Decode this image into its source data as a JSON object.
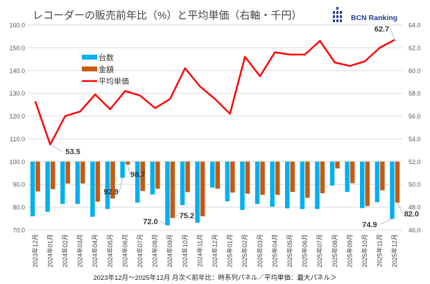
{
  "chart_data": {
    "type": "bar+line",
    "title": "レコーダーの販売前年比（%）と平均単価（右軸・千円）",
    "brand": "BCN Ranking",
    "footer": "2023年12月～2025年12月 月次＜前年比：時系列パネル／平均単価：最大パネル＞",
    "categories": [
      "2023年12月",
      "2024年01月",
      "2024年02月",
      "2024年03月",
      "2024年04月",
      "2024年05月",
      "2024年06月",
      "2024年07月",
      "2024年08月",
      "2024年09月",
      "2024年10月",
      "2024年11月",
      "2024年12月",
      "2025年01月",
      "2025年02月",
      "2025年03月",
      "2025年04月",
      "2025年05月",
      "2025年06月",
      "2025年07月",
      "2025年08月",
      "2025年09月",
      "2025年10月",
      "2025年11月",
      "2025年12月"
    ],
    "y_left": {
      "min": 70,
      "max": 160,
      "ticks": [
        "70.0",
        "80.0",
        "90.0",
        "100.0",
        "110.0",
        "120.0",
        "130.0",
        "140.0",
        "150.0",
        "160.0"
      ],
      "bar_baseline": 100
    },
    "y_right": {
      "min": 46,
      "max": 64,
      "ticks": [
        "46.0",
        "48.0",
        "50.0",
        "52.0",
        "54.0",
        "56.0",
        "58.0",
        "60.0",
        "62.0",
        "64.0"
      ]
    },
    "series": [
      {
        "name": "台数",
        "type": "bar",
        "axis": "left",
        "color": "#00b0f0",
        "values": [
          76.0,
          78.0,
          81.4,
          81.4,
          75.8,
          79.2,
          92.9,
          82.0,
          85.6,
          72.0,
          80.9,
          73.2,
          88.6,
          82.6,
          78.8,
          81.4,
          80.2,
          79.5,
          79.2,
          79.2,
          89.5,
          86.7,
          79.6,
          82.2,
          74.9
        ]
      },
      {
        "name": "金額",
        "type": "bar",
        "axis": "left",
        "color": "#c55a11",
        "values": [
          86.9,
          87.9,
          90.4,
          90.4,
          82.4,
          83.8,
          98.7,
          87.1,
          88.1,
          75.2,
          86.6,
          76.0,
          88.1,
          86.4,
          85.9,
          85.4,
          85.4,
          86.7,
          84.1,
          86.1,
          97.0,
          90.5,
          80.5,
          87.4,
          82.0
        ]
      },
      {
        "name": "平均単価",
        "type": "line",
        "axis": "right",
        "color": "#ff0000",
        "values": [
          57.3,
          53.5,
          56.0,
          56.4,
          57.9,
          56.6,
          58.2,
          57.8,
          56.7,
          57.5,
          60.2,
          58.6,
          57.5,
          56.2,
          61.2,
          59.5,
          61.6,
          61.4,
          61.4,
          62.6,
          60.7,
          60.4,
          60.8,
          62.0,
          62.7
        ]
      }
    ],
    "annotations": [
      {
        "series": 2,
        "index": 1,
        "text": "53.5"
      },
      {
        "series": 2,
        "index": 24,
        "text": "62.7"
      },
      {
        "series": 0,
        "index": 6,
        "text": "92.9"
      },
      {
        "series": 1,
        "index": 6,
        "text": "98.7"
      },
      {
        "series": 0,
        "index": 9,
        "text": "72.0"
      },
      {
        "series": 1,
        "index": 9,
        "text": "75.2"
      },
      {
        "series": 0,
        "index": 24,
        "text": "74.9"
      },
      {
        "series": 1,
        "index": 24,
        "text": "82.0"
      }
    ],
    "legend": "upper-left inside",
    "grid": true
  }
}
